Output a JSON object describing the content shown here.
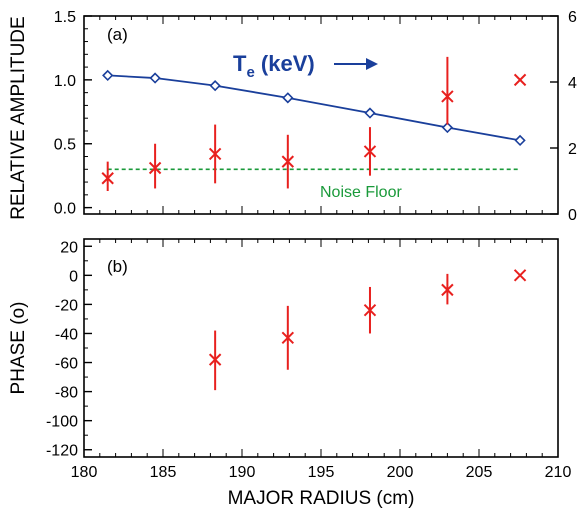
{
  "chart_data": [
    {
      "type": "scatter",
      "panel_label": "(a)",
      "ylabel": "RELATIVE AMPLITUDE",
      "xlim": [
        180,
        210
      ],
      "ylim": [
        -0.05,
        1.5
      ],
      "yticks": [
        "0.0",
        "0.5",
        "1.0",
        "1.5"
      ],
      "y2lim": [
        0,
        6
      ],
      "y2ticks": [
        "0",
        "2",
        "4",
        "6"
      ],
      "te_label_main": "T",
      "te_label_sub": "e",
      "te_label_unit": " (keV)",
      "noise_floor_label": "Noise Floor",
      "noise_floor_value": 0.3,
      "series": [
        {
          "color": "#e8201e",
          "marker": "x",
          "x": [
            181.5,
            184.5,
            188.3,
            192.9,
            198.1,
            203.0,
            207.6
          ],
          "y": [
            0.23,
            0.31,
            0.42,
            0.36,
            0.44,
            0.87,
            1.0
          ],
          "err_low": [
            0.13,
            0.15,
            0.19,
            0.15,
            0.25,
            0.65,
            null
          ],
          "err_high": [
            0.36,
            0.5,
            0.65,
            0.57,
            0.63,
            1.18,
            null
          ]
        },
        {
          "color": "#1a3f9b",
          "marker": "diamond",
          "x": [
            181.5,
            184.5,
            188.3,
            192.9,
            198.1,
            203.0,
            207.6
          ],
          "y2": [
            4.2,
            4.12,
            3.89,
            3.52,
            3.06,
            2.62,
            2.23
          ]
        }
      ],
      "noise_color": "#1a9a3a"
    },
    {
      "type": "scatter",
      "panel_label": "(b)",
      "ylabel": "PHASE (o)",
      "xlabel": "MAJOR RADIUS (cm)",
      "xlim": [
        180,
        210
      ],
      "xticks": [
        "180",
        "185",
        "190",
        "195",
        "200",
        "205",
        "210"
      ],
      "ylim": [
        -125,
        25
      ],
      "yticks": [
        "20",
        "0",
        "-20",
        "-40",
        "-60",
        "-80",
        "-100",
        "-120"
      ],
      "series": [
        {
          "color": "#e8201e",
          "marker": "x",
          "x": [
            188.3,
            192.9,
            198.1,
            203.0,
            207.6
          ],
          "y": [
            -58,
            -43,
            -24,
            -10,
            0
          ],
          "err_low": [
            -79,
            -65,
            -40,
            -20,
            null
          ],
          "err_high": [
            -38,
            -21,
            -8,
            1,
            null
          ]
        }
      ]
    }
  ]
}
